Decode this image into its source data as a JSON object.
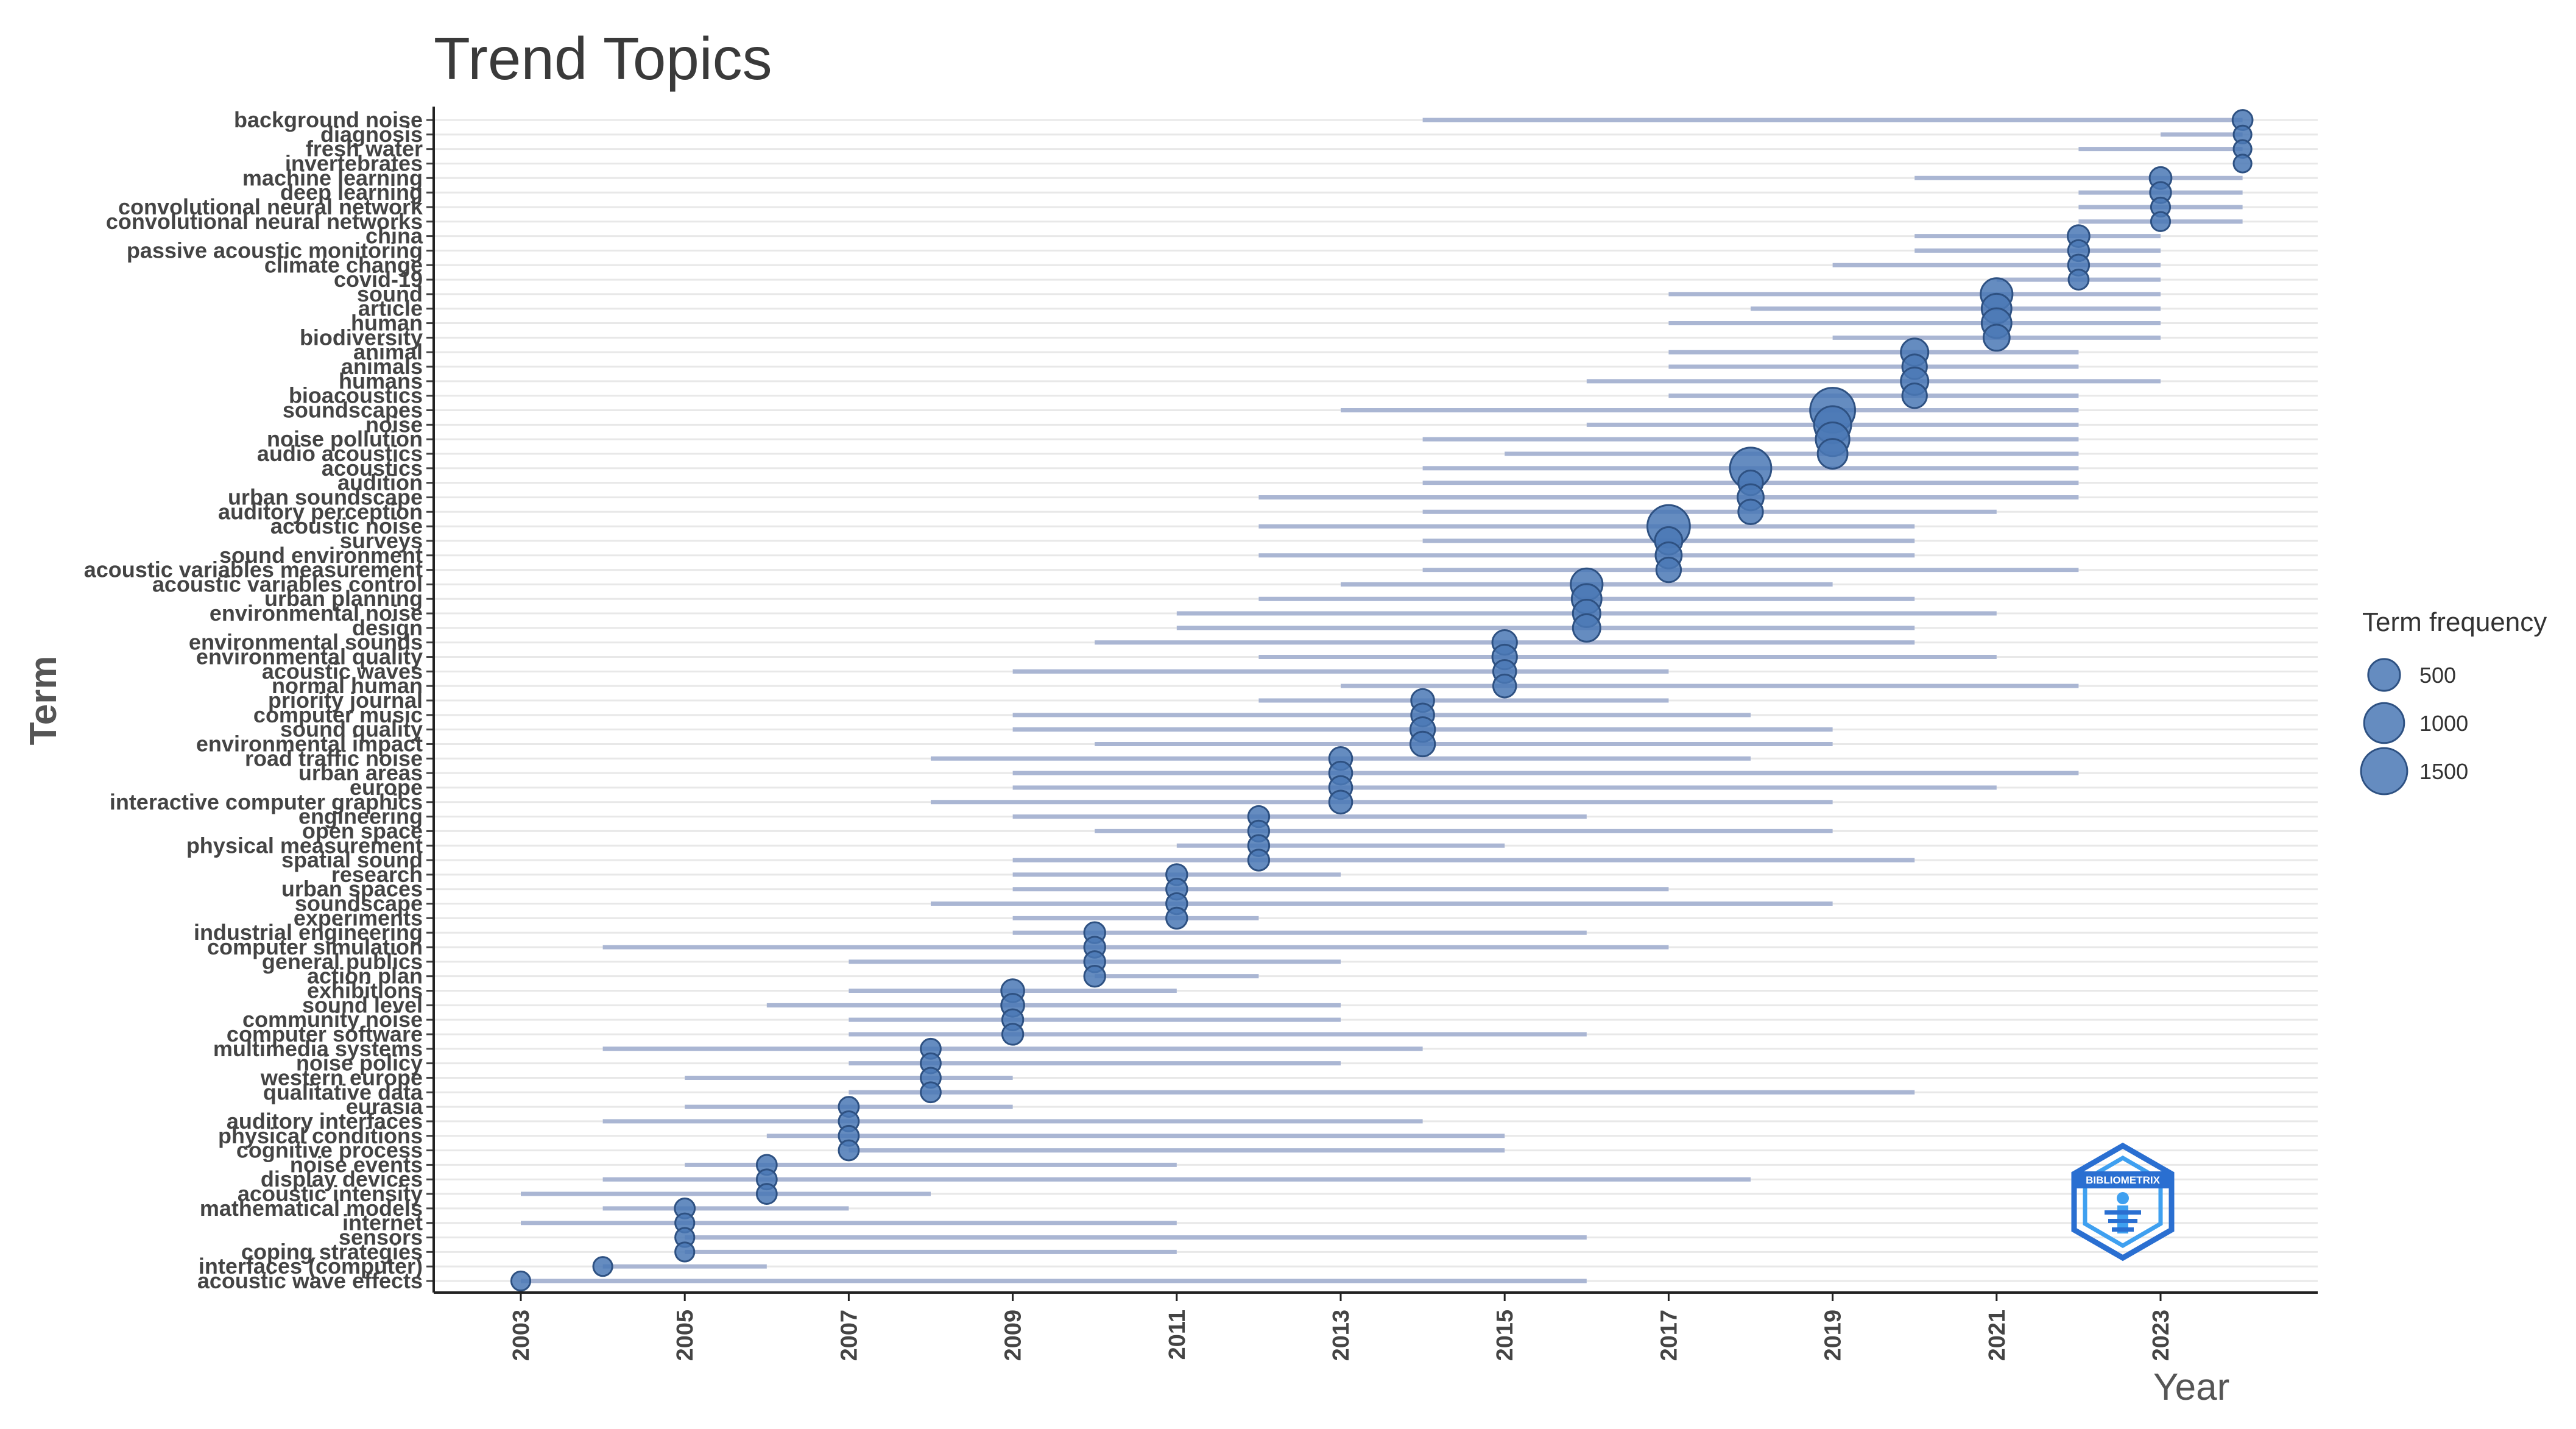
{
  "chart_data": {
    "type": "scatter",
    "title": "Trend Topics",
    "xlabel": "Year",
    "ylabel": "Term",
    "xlim": [
      2002.6,
      2025.0
    ],
    "x_ticks": [
      2003,
      2005,
      2007,
      2009,
      2011,
      2013,
      2015,
      2017,
      2019,
      2021,
      2023
    ],
    "grid": "horizontal",
    "legend": {
      "title": "Term frequency",
      "position": "right",
      "entries": [
        {
          "label": "500",
          "value": 500
        },
        {
          "label": "1000",
          "value": 1000
        },
        {
          "label": "1500",
          "value": 1500
        }
      ]
    },
    "colors": {
      "point": "#4a78b5",
      "point_stroke": "#2e5182",
      "range_line": "#aab6d3",
      "grid": "#e8e8e8",
      "axis": "#222222",
      "logo": "#2a6fd1"
    },
    "logo_text": "BIBLIOMETRIX",
    "terms": [
      {
        "term": "background noise",
        "start": 2014,
        "median": 2024,
        "end": 2024,
        "freq": 80
      },
      {
        "term": "diagnosis",
        "start": 2023,
        "median": 2024,
        "end": 2024,
        "freq": 40
      },
      {
        "term": "fresh water",
        "start": 2022,
        "median": 2024,
        "end": 2024,
        "freq": 40
      },
      {
        "term": "invertebrates",
        "start": 2024,
        "median": 2024,
        "end": 2024,
        "freq": 40
      },
      {
        "term": "machine learning",
        "start": 2020,
        "median": 2023,
        "end": 2024,
        "freq": 120
      },
      {
        "term": "deep learning",
        "start": 2022,
        "median": 2023,
        "end": 2024,
        "freq": 100
      },
      {
        "term": "convolutional neural network",
        "start": 2022,
        "median": 2023,
        "end": 2024,
        "freq": 60
      },
      {
        "term": "convolutional neural networks",
        "start": 2022,
        "median": 2023,
        "end": 2024,
        "freq": 60
      },
      {
        "term": "china",
        "start": 2020,
        "median": 2022,
        "end": 2023,
        "freq": 120
      },
      {
        "term": "passive acoustic monitoring",
        "start": 2020,
        "median": 2022,
        "end": 2023,
        "freq": 100
      },
      {
        "term": "climate change",
        "start": 2019,
        "median": 2022,
        "end": 2023,
        "freq": 100
      },
      {
        "term": "covid-19",
        "start": 2021,
        "median": 2022,
        "end": 2023,
        "freq": 80
      },
      {
        "term": "sound",
        "start": 2017,
        "median": 2021,
        "end": 2023,
        "freq": 500
      },
      {
        "term": "article",
        "start": 2018,
        "median": 2021,
        "end": 2023,
        "freq": 400
      },
      {
        "term": "human",
        "start": 2017,
        "median": 2021,
        "end": 2023,
        "freq": 400
      },
      {
        "term": "biodiversity",
        "start": 2019,
        "median": 2021,
        "end": 2023,
        "freq": 250
      },
      {
        "term": "animal",
        "start": 2017,
        "median": 2020,
        "end": 2022,
        "freq": 300
      },
      {
        "term": "animals",
        "start": 2017,
        "median": 2020,
        "end": 2022,
        "freq": 200
      },
      {
        "term": "humans",
        "start": 2016,
        "median": 2020,
        "end": 2023,
        "freq": 300
      },
      {
        "term": "bioacoustics",
        "start": 2017,
        "median": 2020,
        "end": 2022,
        "freq": 200
      },
      {
        "term": "soundscapes",
        "start": 2013,
        "median": 2019,
        "end": 2022,
        "freq": 1400
      },
      {
        "term": "noise",
        "start": 2016,
        "median": 2019,
        "end": 2022,
        "freq": 800
      },
      {
        "term": "noise pollution",
        "start": 2014,
        "median": 2019,
        "end": 2022,
        "freq": 600
      },
      {
        "term": "audio acoustics",
        "start": 2015,
        "median": 2019,
        "end": 2022,
        "freq": 400
      },
      {
        "term": "acoustics",
        "start": 2014,
        "median": 2018,
        "end": 2022,
        "freq": 1100
      },
      {
        "term": "audition",
        "start": 2014,
        "median": 2018,
        "end": 2022,
        "freq": 200
      },
      {
        "term": "urban soundscape",
        "start": 2012,
        "median": 2018,
        "end": 2022,
        "freq": 250
      },
      {
        "term": "auditory perception",
        "start": 2014,
        "median": 2018,
        "end": 2021,
        "freq": 200
      },
      {
        "term": "acoustic noise",
        "start": 2012,
        "median": 2017,
        "end": 2020,
        "freq": 1200
      },
      {
        "term": "surveys",
        "start": 2014,
        "median": 2017,
        "end": 2020,
        "freq": 300
      },
      {
        "term": "sound environment",
        "start": 2012,
        "median": 2017,
        "end": 2020,
        "freq": 250
      },
      {
        "term": "acoustic variables measurement",
        "start": 2014,
        "median": 2017,
        "end": 2022,
        "freq": 200
      },
      {
        "term": "acoustic variables control",
        "start": 2013,
        "median": 2016,
        "end": 2019,
        "freq": 500
      },
      {
        "term": "urban planning",
        "start": 2012,
        "median": 2016,
        "end": 2020,
        "freq": 400
      },
      {
        "term": "environmental noise",
        "start": 2011,
        "median": 2016,
        "end": 2021,
        "freq": 300
      },
      {
        "term": "design",
        "start": 2011,
        "median": 2016,
        "end": 2020,
        "freq": 300
      },
      {
        "term": "environmental sounds",
        "start": 2010,
        "median": 2015,
        "end": 2020,
        "freq": 200
      },
      {
        "term": "environmental quality",
        "start": 2012,
        "median": 2015,
        "end": 2021,
        "freq": 200
      },
      {
        "term": "acoustic waves",
        "start": 2009,
        "median": 2015,
        "end": 2017,
        "freq": 150
      },
      {
        "term": "normal human",
        "start": 2013,
        "median": 2015,
        "end": 2022,
        "freq": 150
      },
      {
        "term": "priority journal",
        "start": 2012,
        "median": 2014,
        "end": 2017,
        "freq": 150
      },
      {
        "term": "computer music",
        "start": 2009,
        "median": 2014,
        "end": 2018,
        "freq": 150
      },
      {
        "term": "sound quality",
        "start": 2009,
        "median": 2014,
        "end": 2019,
        "freq": 200
      },
      {
        "term": "environmental impact",
        "start": 2010,
        "median": 2014,
        "end": 2019,
        "freq": 200
      },
      {
        "term": "road traffic noise",
        "start": 2008,
        "median": 2013,
        "end": 2018,
        "freq": 150
      },
      {
        "term": "urban areas",
        "start": 2009,
        "median": 2013,
        "end": 2022,
        "freq": 150
      },
      {
        "term": "europe",
        "start": 2009,
        "median": 2013,
        "end": 2021,
        "freq": 150
      },
      {
        "term": "interactive computer graphics",
        "start": 2008,
        "median": 2013,
        "end": 2019,
        "freq": 150
      },
      {
        "term": "engineering",
        "start": 2009,
        "median": 2012,
        "end": 2016,
        "freq": 100
      },
      {
        "term": "open space",
        "start": 2010,
        "median": 2012,
        "end": 2019,
        "freq": 100
      },
      {
        "term": "physical measurement",
        "start": 2011,
        "median": 2012,
        "end": 2015,
        "freq": 100
      },
      {
        "term": "spatial sound",
        "start": 2009,
        "median": 2012,
        "end": 2020,
        "freq": 100
      },
      {
        "term": "research",
        "start": 2009,
        "median": 2011,
        "end": 2013,
        "freq": 100
      },
      {
        "term": "urban spaces",
        "start": 2009,
        "median": 2011,
        "end": 2017,
        "freq": 100
      },
      {
        "term": "soundscape",
        "start": 2008,
        "median": 2011,
        "end": 2019,
        "freq": 100
      },
      {
        "term": "experiments",
        "start": 2009,
        "median": 2011,
        "end": 2012,
        "freq": 100
      },
      {
        "term": "industrial engineering",
        "start": 2009,
        "median": 2010,
        "end": 2016,
        "freq": 100
      },
      {
        "term": "computer simulation",
        "start": 2004,
        "median": 2010,
        "end": 2017,
        "freq": 100
      },
      {
        "term": "general publics",
        "start": 2007,
        "median": 2010,
        "end": 2013,
        "freq": 100
      },
      {
        "term": "action plan",
        "start": 2010,
        "median": 2010,
        "end": 2012,
        "freq": 100
      },
      {
        "term": "exhibitions",
        "start": 2007,
        "median": 2009,
        "end": 2011,
        "freq": 150
      },
      {
        "term": "sound level",
        "start": 2006,
        "median": 2009,
        "end": 2013,
        "freq": 150
      },
      {
        "term": "community noise",
        "start": 2007,
        "median": 2009,
        "end": 2013,
        "freq": 100
      },
      {
        "term": "computer software",
        "start": 2007,
        "median": 2009,
        "end": 2016,
        "freq": 100
      },
      {
        "term": "multimedia systems",
        "start": 2004,
        "median": 2008,
        "end": 2014,
        "freq": 80
      },
      {
        "term": "noise policy",
        "start": 2007,
        "median": 2008,
        "end": 2013,
        "freq": 80
      },
      {
        "term": "western europe",
        "start": 2005,
        "median": 2008,
        "end": 2009,
        "freq": 80
      },
      {
        "term": "qualitative data",
        "start": 2007,
        "median": 2008,
        "end": 2020,
        "freq": 80
      },
      {
        "term": "eurasia",
        "start": 2005,
        "median": 2007,
        "end": 2009,
        "freq": 80
      },
      {
        "term": "auditory interfaces",
        "start": 2004,
        "median": 2007,
        "end": 2014,
        "freq": 80
      },
      {
        "term": "physical conditions",
        "start": 2006,
        "median": 2007,
        "end": 2015,
        "freq": 80
      },
      {
        "term": "cognitive process",
        "start": 2007,
        "median": 2007,
        "end": 2015,
        "freq": 80
      },
      {
        "term": "noise events",
        "start": 2005,
        "median": 2006,
        "end": 2011,
        "freq": 80
      },
      {
        "term": "display devices",
        "start": 2004,
        "median": 2006,
        "end": 2018,
        "freq": 80
      },
      {
        "term": "acoustic intensity",
        "start": 2003,
        "median": 2006,
        "end": 2008,
        "freq": 80
      },
      {
        "term": "mathematical models",
        "start": 2004,
        "median": 2005,
        "end": 2007,
        "freq": 80
      },
      {
        "term": "internet",
        "start": 2003,
        "median": 2005,
        "end": 2011,
        "freq": 60
      },
      {
        "term": "sensors",
        "start": 2005,
        "median": 2005,
        "end": 2016,
        "freq": 60
      },
      {
        "term": "coping strategies",
        "start": 2005,
        "median": 2005,
        "end": 2011,
        "freq": 60
      },
      {
        "term": "interfaces (computer)",
        "start": 2004,
        "median": 2004,
        "end": 2006,
        "freq": 60
      },
      {
        "term": "acoustic wave effects",
        "start": 2003,
        "median": 2003,
        "end": 2016,
        "freq": 60
      }
    ]
  }
}
